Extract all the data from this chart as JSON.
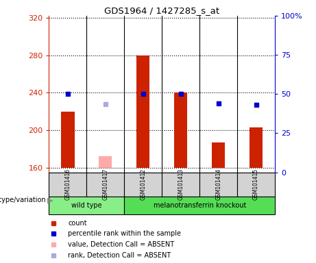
{
  "title": "GDS1964 / 1427285_s_at",
  "samples": [
    "GSM101416",
    "GSM101417",
    "GSM101412",
    "GSM101413",
    "GSM101414",
    "GSM101415"
  ],
  "counts_present": [
    220,
    null,
    280,
    240,
    187,
    203
  ],
  "counts_absent": [
    null,
    172,
    null,
    null,
    null,
    null
  ],
  "ranks_present": [
    50,
    null,
    50,
    50,
    44,
    43
  ],
  "rank_absent_leftval": [
    null,
    228,
    null,
    null,
    null,
    null
  ],
  "ylim_left": [
    155,
    322
  ],
  "ylim_right": [
    0,
    100
  ],
  "yticks_left": [
    160,
    200,
    240,
    280,
    320
  ],
  "yticks_right": [
    0,
    25,
    50,
    75,
    100
  ],
  "bar_color_present": "#cc2200",
  "bar_color_absent": "#ffaaaa",
  "rank_color_present": "#0000cc",
  "rank_color_absent": "#aaaadd",
  "bar_base": 160,
  "bar_width": 0.35,
  "wild_type_indices": [
    0,
    1
  ],
  "knockout_indices": [
    2,
    3,
    4,
    5
  ],
  "wild_type_label": "wild type",
  "knockout_label": "melanotransferrin knockout",
  "wild_type_color": "#88ee88",
  "knockout_color": "#55dd55",
  "genotype_label": "genotype/variation",
  "left_axis_color": "#cc2200",
  "right_axis_color": "#0000cc",
  "column_bg_color": "#d3d3d3",
  "legend": [
    {
      "label": "count",
      "color": "#cc2200",
      "alpha": 1.0
    },
    {
      "label": "percentile rank within the sample",
      "color": "#0000cc",
      "alpha": 1.0
    },
    {
      "label": "value, Detection Call = ABSENT",
      "color": "#ffaaaa",
      "alpha": 1.0
    },
    {
      "label": "rank, Detection Call = ABSENT",
      "color": "#aaaadd",
      "alpha": 1.0
    }
  ]
}
